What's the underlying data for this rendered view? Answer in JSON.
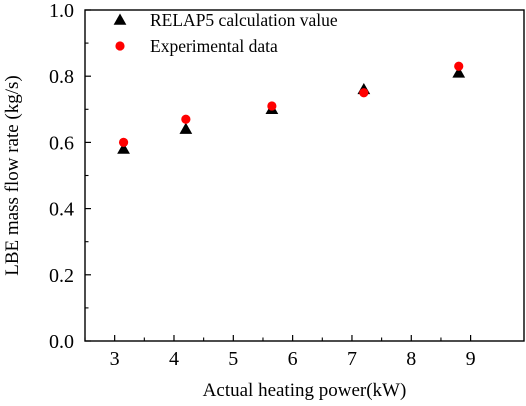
{
  "chart_data": {
    "type": "scatter",
    "xlabel": "Actual heating power(kW)",
    "ylabel": "LBE mass flow rate (kg/s)",
    "xlim": [
      2.5,
      9.9
    ],
    "ylim": [
      0.0,
      1.0
    ],
    "xticks": [
      "3",
      "4",
      "5",
      "6",
      "7",
      "8",
      "9"
    ],
    "yticks": [
      "0.0",
      "0.2",
      "0.4",
      "0.6",
      "0.8",
      "1.0"
    ],
    "grid": false,
    "legend_position": "top-left",
    "series": [
      {
        "name": "RELAP5 calculation value",
        "marker": "triangle",
        "color": "#000000",
        "points": [
          [
            3.15,
            0.58
          ],
          [
            4.2,
            0.64
          ],
          [
            5.65,
            0.7
          ],
          [
            7.2,
            0.76
          ],
          [
            8.8,
            0.81
          ]
        ]
      },
      {
        "name": "Experimental data",
        "marker": "circle",
        "color": "#ff0000",
        "points": [
          [
            3.15,
            0.6
          ],
          [
            4.2,
            0.67
          ],
          [
            5.65,
            0.71
          ],
          [
            7.2,
            0.75
          ],
          [
            8.8,
            0.83
          ]
        ]
      }
    ]
  }
}
